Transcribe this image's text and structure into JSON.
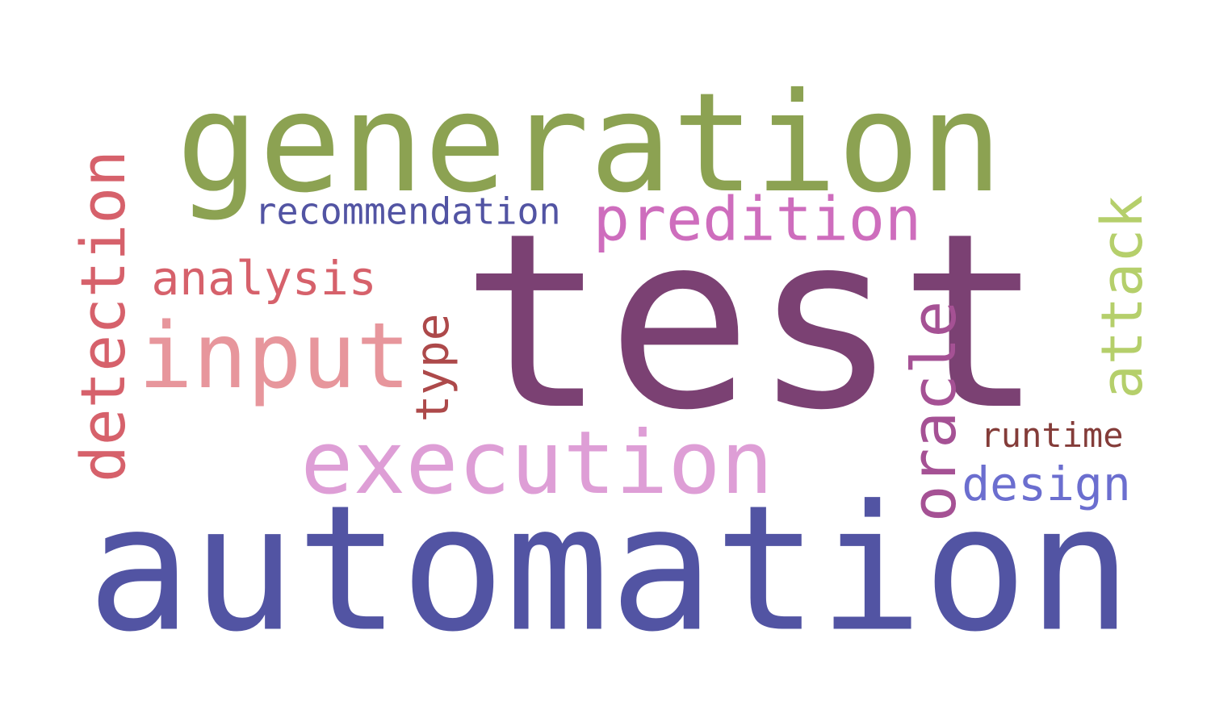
{
  "words": [
    {
      "text": "test",
      "color": "#7b4173"
    },
    {
      "text": "automation",
      "color": "#5254a3"
    },
    {
      "text": "generation",
      "color": "#8ca252"
    },
    {
      "text": "execution",
      "color": "#de9ed6"
    },
    {
      "text": "input",
      "color": "#e7969c"
    },
    {
      "text": "predition",
      "color": "#ce6dbd"
    },
    {
      "text": "analysis",
      "color": "#d6616b"
    },
    {
      "text": "recommendation",
      "color": "#5254a3"
    },
    {
      "text": "runtime",
      "color": "#843c39"
    },
    {
      "text": "design",
      "color": "#6b6ecf"
    },
    {
      "text": "detection",
      "color": "#d6616b"
    },
    {
      "text": "type",
      "color": "#ad494a"
    },
    {
      "text": "oracle",
      "color": "#a55194"
    },
    {
      "text": "attack",
      "color": "#b5cf6b"
    }
  ]
}
